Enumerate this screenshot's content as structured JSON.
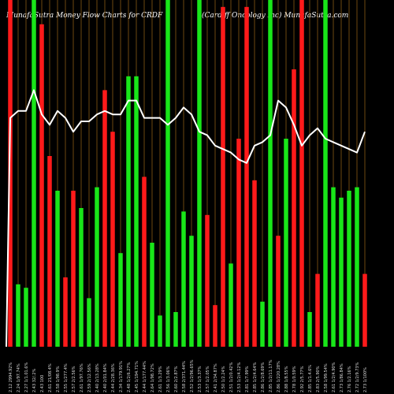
{
  "header": {
    "title": "MunafaSutra  Money Flow  Charts for CRDF",
    "subtitle": "(Cardiff Oncology Inc) MunafaSutra.com"
  },
  "chart_data": {
    "type": "bar",
    "title": "MunafaSutra  Money Flow  Charts for CRDF",
    "subtitle": "(Cardiff Oncology Inc) MunafaSutra.com",
    "colors": {
      "up": "#19e619",
      "down": "#ff1a1a",
      "grid": "#b8781b",
      "line": "#ffffff",
      "background": "#000000"
    },
    "ylim": [
      0,
      100
    ],
    "categories": [
      "2.12 2994.92%",
      "2.24 1/97.74%",
      "2.27 1/1.01.6%",
      "2.43 32/.2%",
      "2.43 100",
      "2.61 21/08.4%",
      "2.58 1/98.9%",
      "2.55 1/277.4%",
      "2.57 2/2.56%",
      "2.61 1/97.76%",
      "2.59 2/12.56%",
      "2.40 2/13.28%",
      "2.40 2/01.84%",
      "2.44 2/28.36%",
      "2.34 1/179.91%",
      "2.48 1/2/6.27%",
      "2.45 1/194.71%",
      "2.44 1/177.44%",
      "2.64 1/98.72%",
      "2.61 1/3.29%",
      "2.56 1/3.06%",
      "2.60 2/2.87%",
      "2.58 2/371.44%",
      "2.52 1/2/96.65%",
      "2.53 1/3.37%",
      "2.57 1/2.05%",
      "2.41 2/34.87%",
      "2.50 1/2.24%",
      "2.51 1/2/0.42%",
      "2.53 1/2/4.12%",
      "2.81 1/7.99%",
      "2.85 1/2/4.64%",
      "2.86 1/2/8.69%",
      "2.85 1/2/11.17%",
      "2.86 1/220.28%",
      "2.88 1/8.55%",
      "2.78 1/0.59%",
      "2.92 2/5.77%",
      "2.85 1/1.4.6%",
      "2.83 2/5.90%",
      "2.58 1/99.54%",
      "2.61 1/2/4.90%",
      "2.73 1/86.84%",
      "2.76 1/2.16%",
      "2.72 1/2/9.73%",
      "2.73 1/100%"
    ],
    "bar_direction": [
      "down",
      "up",
      "up",
      "up",
      "down",
      "down",
      "up",
      "down",
      "down",
      "up",
      "up",
      "up",
      "down",
      "down",
      "up",
      "up",
      "up",
      "down",
      "up",
      "up",
      "up",
      "up",
      "up",
      "up",
      "up",
      "down",
      "down",
      "down",
      "up",
      "down",
      "down",
      "down",
      "up",
      "up",
      "down",
      "up",
      "down",
      "down",
      "up",
      "down",
      "up",
      "up",
      "up",
      "up",
      "up",
      "down"
    ],
    "bar_values": [
      100,
      18,
      17,
      100,
      93,
      55,
      45,
      20,
      45,
      40,
      14,
      46,
      74,
      62,
      27,
      78,
      78,
      49,
      30,
      9,
      100,
      10,
      39,
      32,
      100,
      38,
      12,
      98,
      24,
      60,
      98,
      48,
      13,
      100,
      32,
      60,
      80,
      100,
      10,
      21,
      100,
      46,
      43,
      45,
      46,
      21
    ],
    "line_values": [
      66,
      68,
      68,
      74,
      67,
      64,
      68,
      66,
      62,
      65,
      65,
      67,
      68,
      67,
      67,
      71,
      71,
      66,
      66,
      66,
      64,
      66,
      69,
      67,
      62,
      61,
      58,
      57,
      56,
      54,
      53,
      58,
      59,
      61,
      71,
      69,
      64,
      58,
      61,
      63,
      60,
      59,
      58,
      57,
      56,
      62
    ]
  }
}
